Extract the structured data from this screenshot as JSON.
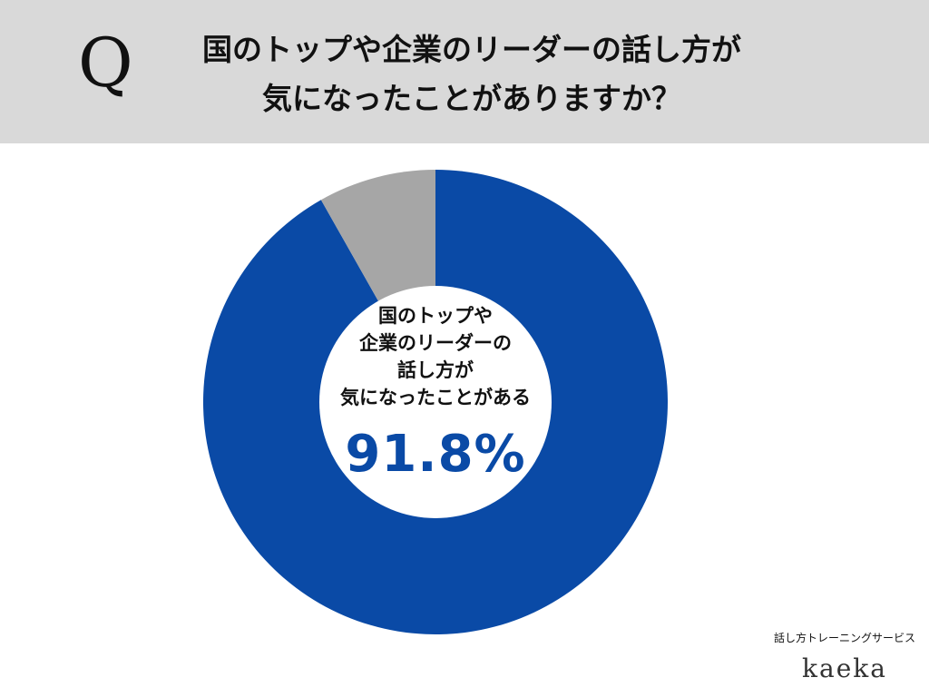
{
  "header": {
    "q_mark": "Q",
    "question_line1": "国のトップや企業のリーダーの話し方が",
    "question_line2": "気になったことがありますか？"
  },
  "center_label": {
    "line1": "国のトップや",
    "line2": "企業のリーダーの",
    "line3": "話し方が",
    "line4": "気になったことがある",
    "value_text": "91.8%"
  },
  "brand": {
    "service": "話し方トレーニングサービス",
    "logo": "kaeka"
  },
  "chart_data": {
    "type": "pie",
    "title": "国のトップや企業のリーダーの話し方が気になったことがありますか？",
    "series": [
      {
        "values": [
          91.8,
          8.2
        ],
        "colors": [
          "#0a4aa6",
          "#a6a6a6"
        ]
      }
    ],
    "annotations": [
      "国のトップや企業のリーダーの話し方が気になったことがある 91.8%"
    ]
  }
}
